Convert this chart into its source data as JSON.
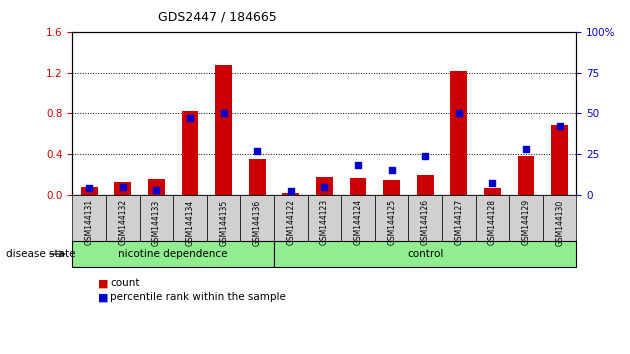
{
  "title": "GDS2447 / 184665",
  "samples": [
    "GSM144131",
    "GSM144132",
    "GSM144133",
    "GSM144134",
    "GSM144135",
    "GSM144136",
    "GSM144122",
    "GSM144123",
    "GSM144124",
    "GSM144125",
    "GSM144126",
    "GSM144127",
    "GSM144128",
    "GSM144129",
    "GSM144130"
  ],
  "count_values": [
    0.08,
    0.12,
    0.15,
    0.82,
    1.27,
    0.35,
    0.02,
    0.17,
    0.16,
    0.14,
    0.19,
    1.22,
    0.07,
    0.38,
    0.68
  ],
  "percentile_values": [
    4,
    5,
    3,
    47,
    50,
    27,
    2,
    5,
    18,
    15,
    24,
    50,
    7,
    28,
    42
  ],
  "groups": [
    {
      "label": "nicotine dependence",
      "start": 0,
      "end": 6
    },
    {
      "label": "control",
      "start": 6,
      "end": 15
    }
  ],
  "group_color": "#90ee90",
  "left_yaxis": {
    "min": 0,
    "max": 1.6,
    "ticks": [
      0.0,
      0.4,
      0.8,
      1.2,
      1.6
    ],
    "color": "#cc0000"
  },
  "right_yaxis": {
    "min": 0,
    "max": 100,
    "ticks": [
      0,
      25,
      50,
      75,
      100
    ],
    "color": "#0000cc"
  },
  "bar_color": "#cc0000",
  "dot_color": "#0000cc",
  "bg_color": "#ffffff",
  "xlabel_disease": "disease state",
  "legend": [
    "count",
    "percentile rank within the sample"
  ],
  "xtick_bg": "#d0d0d0",
  "n_nicotine": 6,
  "n_total": 15
}
